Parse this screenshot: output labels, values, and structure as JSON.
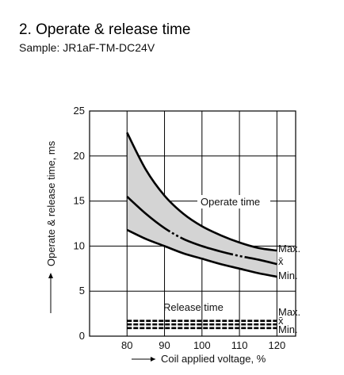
{
  "header": {
    "title": "2. Operate & release time",
    "subtitle": "Sample: JR1aF-TM-DC24V"
  },
  "chart_data": {
    "type": "line",
    "xlabel": "Coil applied voltage, %",
    "ylabel": "Operate & release time, ms",
    "xlim": [
      70,
      125
    ],
    "ylim": [
      0,
      25
    ],
    "x_ticks": [
      "80",
      "90",
      "100",
      "110",
      "120"
    ],
    "y_ticks": [
      "0",
      "5",
      "10",
      "15",
      "20",
      "25"
    ],
    "grid": true,
    "series": [
      {
        "name": "Max.",
        "group": "Operate time",
        "x": [
          80,
          85,
          90,
          95,
          100,
          105,
          110,
          115,
          120
        ],
        "y": [
          22.6,
          18.5,
          15.6,
          13.6,
          12.2,
          11.2,
          10.4,
          9.8,
          9.5
        ]
      },
      {
        "name": "x̄",
        "group": "Operate time",
        "x": [
          80,
          85,
          90,
          95,
          100,
          105,
          110,
          115,
          120
        ],
        "y": [
          15.5,
          13.6,
          12.0,
          10.8,
          10.0,
          9.4,
          8.9,
          8.5,
          8.0
        ]
      },
      {
        "name": "Min.",
        "group": "Operate time",
        "x": [
          80,
          85,
          90,
          95,
          100,
          105,
          110,
          115,
          120
        ],
        "y": [
          11.8,
          10.8,
          10.0,
          9.2,
          8.6,
          8.0,
          7.5,
          7.0,
          6.6
        ]
      },
      {
        "name": "Max.",
        "group": "Release time",
        "x": [
          80,
          120
        ],
        "y": [
          1.7,
          1.7
        ]
      },
      {
        "name": "x̄",
        "group": "Release time",
        "x": [
          80,
          120
        ],
        "y": [
          1.3,
          1.3
        ]
      },
      {
        "name": "Min.",
        "group": "Release time",
        "x": [
          80,
          120
        ],
        "y": [
          0.9,
          0.9
        ]
      }
    ],
    "annotations": [
      "Operate time",
      "Release time"
    ],
    "colors": {
      "band": "#d4d4d4",
      "line": "#000000",
      "grid": "#000000"
    }
  }
}
